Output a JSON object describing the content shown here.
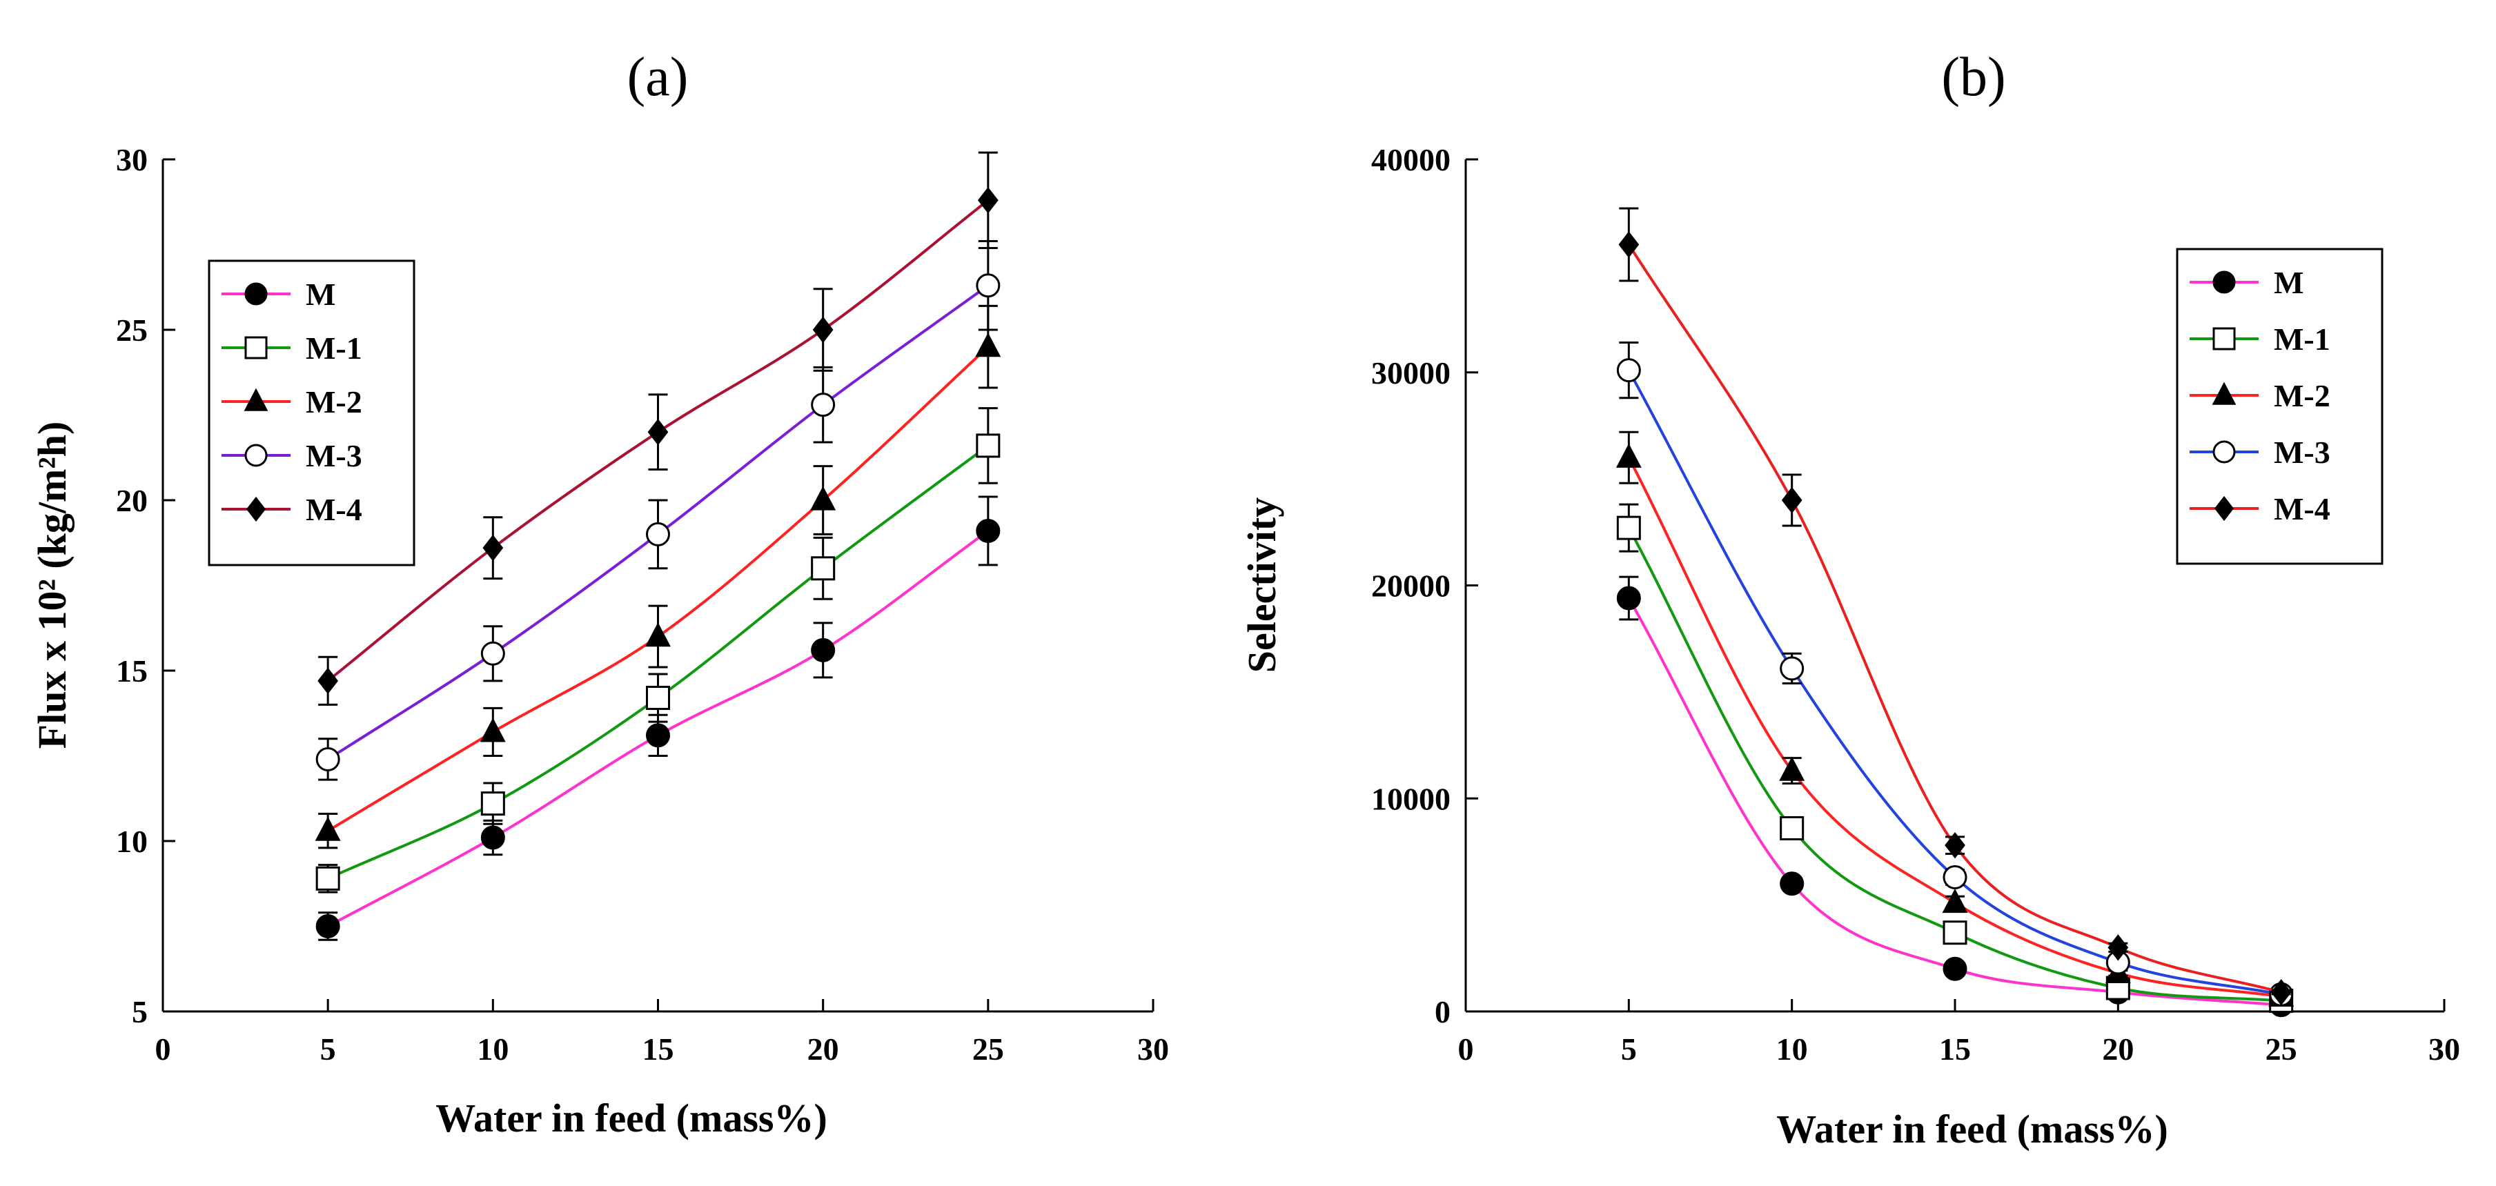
{
  "chart_data": [
    {
      "type": "line",
      "title": "(a)",
      "xlabel": "Water in  feed (mass%)",
      "ylabel": "Flux x 10² (kg/m²h)",
      "xlim": [
        0,
        30
      ],
      "ylim": [
        5,
        30
      ],
      "xticks": [
        "0",
        "5",
        "10",
        "15",
        "20",
        "25",
        "30"
      ],
      "yticks": [
        "5",
        "10",
        "15",
        "20",
        "25",
        "30"
      ],
      "legend_position": "top-left",
      "x": [
        5,
        10,
        15,
        20,
        25
      ],
      "series": [
        {
          "name": "M",
          "marker": "filled-circle",
          "color": "#ff33cc",
          "values": [
            7.5,
            10.1,
            13.1,
            15.6,
            19.1
          ],
          "err": [
            0.4,
            0.5,
            0.6,
            0.8,
            1.0
          ]
        },
        {
          "name": "M-1",
          "marker": "open-square",
          "color": "#119911",
          "values": [
            8.9,
            11.1,
            14.2,
            18.0,
            21.6
          ],
          "err": [
            0.4,
            0.6,
            0.7,
            0.9,
            1.1
          ]
        },
        {
          "name": "M-2",
          "marker": "filled-triangle",
          "color": "#ff2222",
          "values": [
            10.3,
            13.2,
            16.0,
            20.0,
            24.5
          ],
          "err": [
            0.5,
            0.7,
            0.9,
            1.0,
            1.2
          ]
        },
        {
          "name": "M-3",
          "marker": "open-circle",
          "color": "#7b1fd6",
          "values": [
            12.4,
            15.5,
            19.0,
            22.8,
            26.3
          ],
          "err": [
            0.6,
            0.8,
            1.0,
            1.1,
            1.3
          ]
        },
        {
          "name": "M-4",
          "marker": "filled-diamond",
          "color": "#aa1133",
          "values": [
            14.7,
            18.6,
            22.0,
            25.0,
            28.8
          ],
          "err": [
            0.7,
            0.9,
            1.1,
            1.2,
            1.4
          ]
        }
      ]
    },
    {
      "type": "line",
      "title": "(b)",
      "xlabel": "Water in  feed (mass%)",
      "ylabel": "Selectivity",
      "xlim": [
        0,
        30
      ],
      "ylim": [
        0,
        40000
      ],
      "xticks": [
        "0",
        "5",
        "10",
        "15",
        "20",
        "25",
        "30"
      ],
      "yticks": [
        "0",
        "10000",
        "20000",
        "30000",
        "40000"
      ],
      "legend_position": "top-right",
      "x": [
        5,
        10,
        15,
        20,
        25
      ],
      "series": [
        {
          "name": "M",
          "marker": "filled-circle",
          "color": "#ff33cc",
          "values": [
            19400,
            6000,
            2000,
            900,
            300
          ],
          "err": [
            1000,
            300,
            150,
            80,
            50
          ]
        },
        {
          "name": "M-1",
          "marker": "open-square",
          "color": "#119911",
          "values": [
            22700,
            8600,
            3700,
            1100,
            500
          ],
          "err": [
            1100,
            400,
            250,
            100,
            60
          ]
        },
        {
          "name": "M-2",
          "marker": "filled-triangle",
          "color": "#ff2222",
          "values": [
            26000,
            11300,
            5100,
            1800,
            700
          ],
          "err": [
            1200,
            600,
            300,
            120,
            70
          ]
        },
        {
          "name": "M-3",
          "marker": "open-circle",
          "color": "#2244dd",
          "values": [
            30100,
            16100,
            6300,
            2300,
            800
          ],
          "err": [
            1300,
            700,
            350,
            150,
            80
          ]
        },
        {
          "name": "M-4",
          "marker": "filled-diamond",
          "color": "#e82020",
          "values": [
            36000,
            24000,
            7800,
            3000,
            900
          ],
          "err": [
            1700,
            1200,
            400,
            200,
            90
          ]
        }
      ]
    }
  ]
}
